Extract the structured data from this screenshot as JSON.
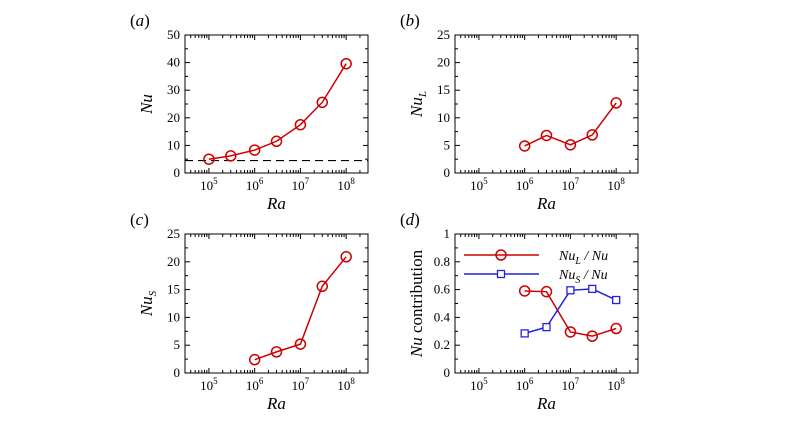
{
  "chart_data": [
    {
      "panel": "(a)",
      "type": "line",
      "xscale": "log",
      "x": [
        100000,
        300000,
        1000000,
        3000000,
        10000000,
        30000000,
        100000000
      ],
      "series": [
        {
          "values": [
            5.0,
            6.2,
            8.3,
            11.5,
            17.5,
            25.6,
            39.6
          ],
          "color": "#cc0000",
          "marker": "circle"
        }
      ],
      "reference_line": {
        "y": 4.5,
        "style": "dashed",
        "color": "#000000"
      },
      "xlabel": "Ra",
      "ylabel": "Nu",
      "xlim": [
        30000,
        300000000
      ],
      "ylim": [
        0,
        50
      ],
      "yticks": [
        "0",
        "10",
        "20",
        "30",
        "40",
        "50"
      ],
      "xticks": [
        {
          "base": "10",
          "exp": "5"
        },
        {
          "base": "10",
          "exp": "6"
        },
        {
          "base": "10",
          "exp": "7"
        },
        {
          "base": "10",
          "exp": "8"
        }
      ]
    },
    {
      "panel": "(b)",
      "type": "line",
      "xscale": "log",
      "x": [
        1000000,
        3000000,
        10000000,
        30000000,
        100000000
      ],
      "series": [
        {
          "values": [
            4.9,
            6.8,
            5.1,
            6.9,
            12.7
          ],
          "color": "#cc0000",
          "marker": "circle"
        }
      ],
      "xlabel": "Ra",
      "ylabel": "Nu",
      "ylabel_sub": "L",
      "xlim": [
        30000,
        300000000
      ],
      "ylim": [
        0,
        25
      ],
      "yticks": [
        "0",
        "5",
        "10",
        "15",
        "20",
        "25"
      ],
      "xticks": [
        {
          "base": "10",
          "exp": "5"
        },
        {
          "base": "10",
          "exp": "6"
        },
        {
          "base": "10",
          "exp": "7"
        },
        {
          "base": "10",
          "exp": "8"
        }
      ]
    },
    {
      "panel": "(c)",
      "type": "line",
      "xscale": "log",
      "x": [
        1000000,
        3000000,
        10000000,
        30000000,
        100000000
      ],
      "series": [
        {
          "values": [
            2.4,
            3.8,
            5.2,
            15.6,
            20.9
          ],
          "color": "#cc0000",
          "marker": "circle"
        }
      ],
      "xlabel": "Ra",
      "ylabel": "Nu",
      "ylabel_sub": "S",
      "xlim": [
        30000,
        300000000
      ],
      "ylim": [
        0,
        25
      ],
      "yticks": [
        "0",
        "5",
        "10",
        "15",
        "20",
        "25"
      ],
      "xticks": [
        {
          "base": "10",
          "exp": "5"
        },
        {
          "base": "10",
          "exp": "6"
        },
        {
          "base": "10",
          "exp": "7"
        },
        {
          "base": "10",
          "exp": "8"
        }
      ]
    },
    {
      "panel": "(d)",
      "type": "line",
      "xscale": "log",
      "x": [
        1000000,
        3000000,
        10000000,
        30000000,
        100000000
      ],
      "series": [
        {
          "name": "Nu_L / Nu",
          "name_base": "Nu",
          "name_sub": "L",
          "name_tail": " / Nu",
          "values": [
            0.59,
            0.585,
            0.295,
            0.265,
            0.32
          ],
          "color": "#cc0000",
          "marker": "circle"
        },
        {
          "name": "Nu_S / Nu",
          "name_base": "Nu",
          "name_sub": "S",
          "name_tail": " / Nu",
          "values": [
            0.285,
            0.33,
            0.595,
            0.605,
            0.525
          ],
          "color": "#2222dd",
          "marker": "square"
        }
      ],
      "xlabel": "Ra",
      "ylabel": "Nu",
      "ylabel_tail": " contribution",
      "xlim": [
        30000,
        300000000
      ],
      "ylim": [
        0,
        1
      ],
      "yticks": [
        "0",
        "0.2",
        "0.4",
        "0.6",
        "0.8",
        "1"
      ],
      "xticks": [
        {
          "base": "10",
          "exp": "5"
        },
        {
          "base": "10",
          "exp": "6"
        },
        {
          "base": "10",
          "exp": "7"
        },
        {
          "base": "10",
          "exp": "8"
        }
      ],
      "legend": "top"
    }
  ]
}
